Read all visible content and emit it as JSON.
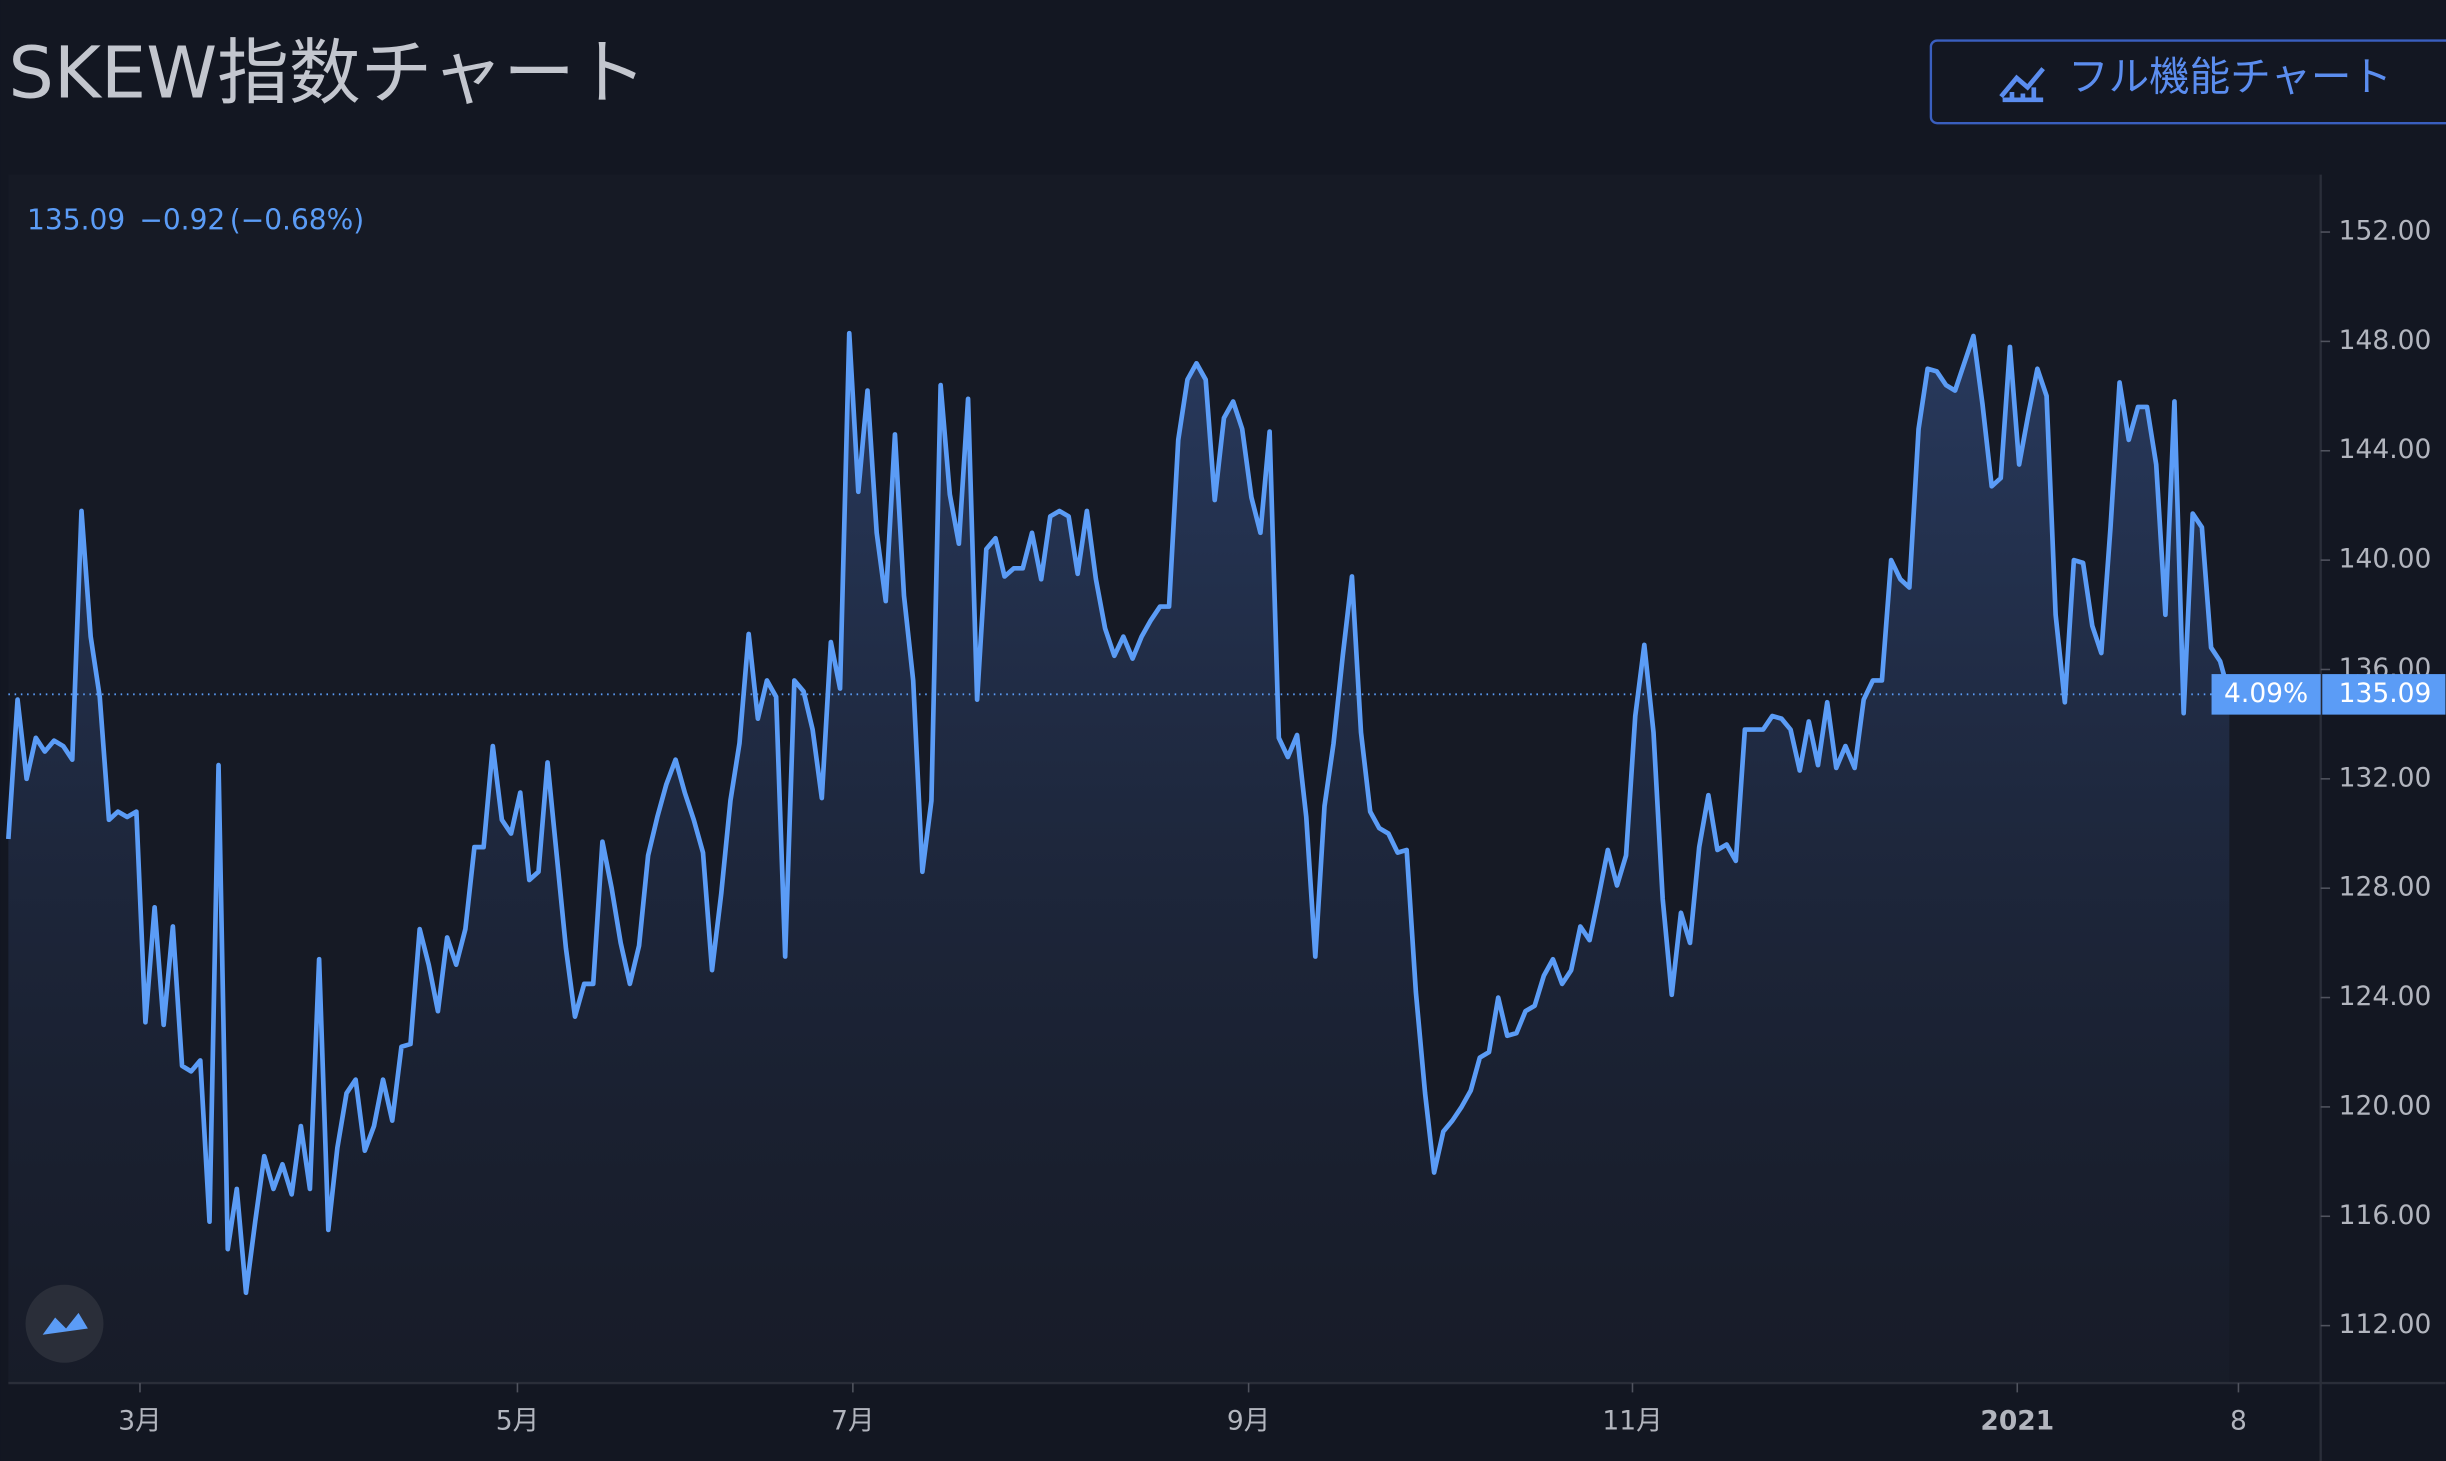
{
  "header": {
    "title": "SKEW指数チャート",
    "button": "フル機能チャート"
  },
  "chart_data": {
    "type": "line",
    "legend": {
      "last": "135.09",
      "change": "−0.92",
      "change_pct": "(−0.68%)"
    },
    "price_line": {
      "value": 135.09,
      "label": "135.09"
    },
    "price_line_pct": "4.09%",
    "color": "#5b9cf6",
    "xlim": [
      0,
      253
    ],
    "xticks": [
      {
        "value": 14.4,
        "label": "3月"
      },
      {
        "value": 55.7,
        "label": "5月"
      },
      {
        "value": 92.4,
        "label": "7月"
      },
      {
        "value": 135.7,
        "label": "9月"
      },
      {
        "value": 177.7,
        "label": "11月"
      },
      {
        "value": 219.8,
        "label": "2021"
      },
      {
        "value": 244,
        "label": "8"
      }
    ],
    "ylim": [
      109.9,
      154.1
    ],
    "yticks": [
      {
        "value": 112,
        "label": "112.00"
      },
      {
        "value": 116,
        "label": "116.00"
      },
      {
        "value": 120,
        "label": "120.00"
      },
      {
        "value": 124,
        "label": "124.00"
      },
      {
        "value": 128,
        "label": "128.00"
      },
      {
        "value": 132,
        "label": "132.00"
      },
      {
        "value": 136,
        "label": "136.00"
      },
      {
        "value": 140,
        "label": "140.00"
      },
      {
        "value": 144,
        "label": "144.00"
      },
      {
        "value": 148,
        "label": "148.00"
      },
      {
        "value": 152,
        "label": "152.00"
      }
    ],
    "values": [
      129.8,
      134.9,
      132,
      133.5,
      133,
      133.4,
      133.2,
      132.7,
      141.8,
      137.2,
      135,
      130.5,
      130.8,
      130.6,
      130.8,
      123.1,
      127.3,
      123,
      126.6,
      121.5,
      121.3,
      121.7,
      115.8,
      132.5,
      114.8,
      117,
      113.2,
      115.8,
      118.2,
      117,
      117.9,
      116.8,
      119.3,
      117,
      125.4,
      115.5,
      118.5,
      120.5,
      121,
      118.4,
      119.3,
      121,
      119.5,
      122.2,
      122.3,
      126.5,
      125.2,
      123.5,
      126.2,
      125.2,
      126.5,
      129.5,
      129.5,
      133.2,
      130.5,
      130,
      131.5,
      128.3,
      128.6,
      132.6,
      129.2,
      125.8,
      123.3,
      124.5,
      124.5,
      129.7,
      128,
      126,
      124.5,
      125.9,
      129.2,
      130.6,
      131.8,
      132.7,
      131.5,
      130.5,
      129.3,
      125,
      127.8,
      131.2,
      133.3,
      137.3,
      134.2,
      135.6,
      135,
      125.5,
      135.6,
      135.2,
      133.8,
      131.3,
      137,
      135.3,
      148.3,
      142.5,
      146.2,
      141,
      138.5,
      144.6,
      138.7,
      135.6,
      128.6,
      131.2,
      146.4,
      142.4,
      140.6,
      145.9,
      134.9,
      140.4,
      140.8,
      139.4,
      139.7,
      139.7,
      141,
      139.3,
      141.6,
      141.8,
      141.6,
      139.5,
      141.8,
      139.3,
      137.5,
      136.5,
      137.2,
      136.4,
      137.2,
      137.8,
      138.3,
      138.3,
      144.4,
      146.6,
      147.2,
      146.6,
      142.2,
      145.2,
      145.8,
      144.8,
      142.3,
      141,
      144.7,
      133.5,
      132.8,
      133.6,
      130.6,
      125.5,
      131,
      133.3,
      136.5,
      139.4,
      133.7,
      130.8,
      130.2,
      130,
      129.3,
      129.4,
      124.2,
      120.5,
      117.6,
      119.1,
      119.5,
      120,
      120.6,
      121.8,
      122,
      124,
      122.6,
      122.7,
      123.5,
      123.7,
      124.8,
      125.4,
      124.5,
      125,
      126.6,
      126.1,
      127.7,
      129.4,
      128.1,
      129.2,
      134.3,
      136.9,
      133.7,
      127.6,
      124.1,
      127.1,
      126,
      129.5,
      131.4,
      129.4,
      129.6,
      129,
      133.8,
      133.8,
      133.8,
      134.3,
      134.2,
      133.8,
      132.3,
      134.1,
      132.5,
      134.8,
      132.4,
      133.2,
      132.4,
      134.9,
      135.6,
      135.6,
      140,
      139.3,
      139,
      144.8,
      147,
      146.9,
      146.4,
      146.2,
      147.2,
      148.2,
      145.7,
      142.7,
      143,
      147.8,
      143.5,
      145.3,
      147,
      146,
      138,
      134.8,
      140,
      139.9,
      137.6,
      136.6,
      141.2,
      146.5,
      144.4,
      145.6,
      145.6,
      143.5,
      138,
      145.8,
      134.4,
      141.7,
      141.2,
      136.8,
      136.3,
      135.09
    ]
  }
}
